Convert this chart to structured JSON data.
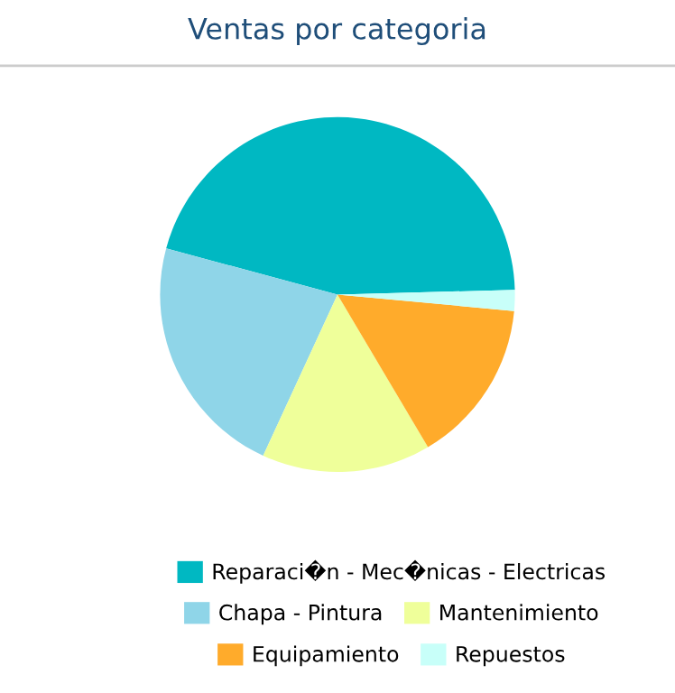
{
  "chart_data": {
    "type": "pie",
    "title": "Ventas por categoria",
    "categories": [
      "Reparaci�n - Mec�nicas - Electricas",
      "Chapa - Pintura",
      "Mantenimiento",
      "Equipamiento",
      "Repuestos"
    ],
    "values": [
      45.4,
      22.3,
      15.4,
      15.0,
      1.9
    ],
    "colors": [
      "#00b8c2",
      "#8fd5e8",
      "#efff9a",
      "#ffab2b",
      "#c8fff9"
    ],
    "legend": "bottom"
  }
}
